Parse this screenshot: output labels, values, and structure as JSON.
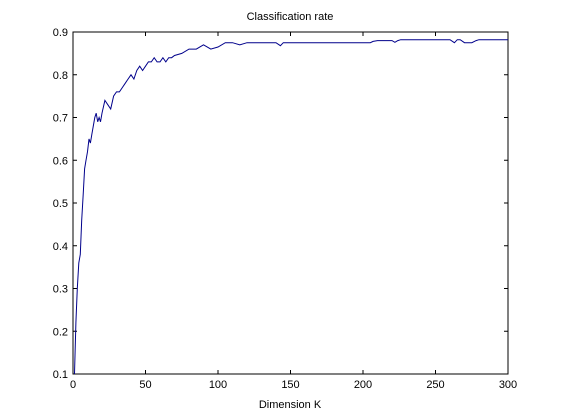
{
  "chart_data": {
    "type": "line",
    "title": "Classification rate",
    "xlabel": "Dimension K",
    "ylabel": "",
    "xlim": [
      0,
      300
    ],
    "ylim": [
      0.1,
      0.9
    ],
    "xticks": [
      0,
      50,
      100,
      150,
      200,
      250,
      300
    ],
    "yticks": [
      0.1,
      0.2,
      0.3,
      0.4,
      0.5,
      0.6,
      0.7,
      0.8,
      0.9
    ],
    "xtick_labels": [
      "0",
      "50",
      "100",
      "150",
      "200",
      "250",
      "300"
    ],
    "ytick_labels": [
      "0.1",
      "0.2",
      "0.3",
      "0.4",
      "0.5",
      "0.6",
      "0.7",
      "0.8",
      "0.9"
    ],
    "grid": false,
    "legend": "none",
    "series": [
      {
        "color": "#00008b",
        "x": [
          1,
          2,
          3,
          4,
          5,
          6,
          7,
          8,
          9,
          10,
          11,
          12,
          13,
          14,
          15,
          16,
          17,
          18,
          19,
          20,
          22,
          24,
          26,
          28,
          30,
          32,
          34,
          36,
          38,
          40,
          42,
          44,
          46,
          48,
          50,
          52,
          54,
          56,
          58,
          60,
          62,
          64,
          66,
          68,
          70,
          75,
          80,
          85,
          90,
          95,
          100,
          105,
          110,
          115,
          120,
          130,
          140,
          143,
          145,
          147,
          150,
          160,
          180,
          200,
          205,
          207,
          210,
          220,
          222,
          224,
          226,
          230,
          240,
          250,
          260,
          263,
          265,
          267,
          270,
          275,
          278,
          280,
          290,
          300
        ],
        "y": [
          0.1,
          0.22,
          0.3,
          0.36,
          0.38,
          0.46,
          0.52,
          0.58,
          0.6,
          0.62,
          0.65,
          0.64,
          0.66,
          0.68,
          0.7,
          0.71,
          0.69,
          0.7,
          0.69,
          0.71,
          0.74,
          0.73,
          0.72,
          0.75,
          0.76,
          0.76,
          0.77,
          0.78,
          0.79,
          0.8,
          0.79,
          0.81,
          0.82,
          0.81,
          0.82,
          0.83,
          0.83,
          0.84,
          0.83,
          0.83,
          0.84,
          0.83,
          0.84,
          0.84,
          0.845,
          0.85,
          0.86,
          0.86,
          0.87,
          0.86,
          0.865,
          0.875,
          0.875,
          0.87,
          0.875,
          0.875,
          0.875,
          0.868,
          0.875,
          0.875,
          0.875,
          0.875,
          0.875,
          0.875,
          0.875,
          0.878,
          0.88,
          0.88,
          0.876,
          0.88,
          0.882,
          0.882,
          0.882,
          0.882,
          0.882,
          0.875,
          0.882,
          0.882,
          0.875,
          0.875,
          0.88,
          0.882,
          0.882,
          0.882
        ]
      }
    ]
  }
}
